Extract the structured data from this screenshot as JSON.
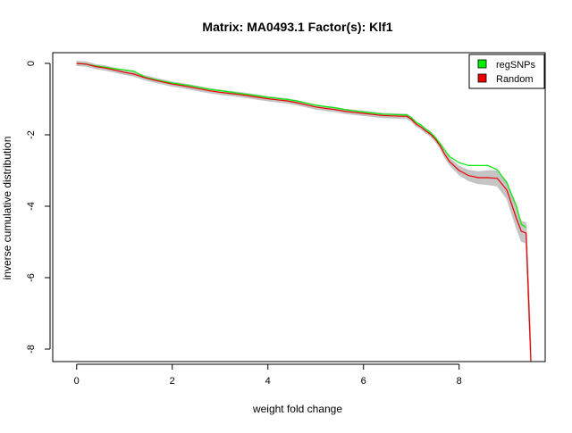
{
  "chart_data": {
    "type": "line",
    "title": "Matrix: MA0493.1 Factor(s): Klf1",
    "xlabel": "weight fold change",
    "ylabel": "inverse cumulative distribution",
    "xlim": [
      -0.5,
      9.8
    ],
    "ylim": [
      -8.35,
      0.3
    ],
    "x_ticks": [
      0,
      2,
      4,
      6,
      8
    ],
    "y_ticks": [
      0,
      -2,
      -4,
      -6,
      -8
    ],
    "x_tick_labels": [
      "0",
      "2",
      "4",
      "6",
      "8"
    ],
    "y_tick_labels": [
      "0",
      "-2",
      "-4",
      "-6",
      "-8"
    ],
    "grid": false,
    "legend": {
      "position": "top-right",
      "entries": [
        {
          "label": "regSNPs",
          "color": "#00ee00"
        },
        {
          "label": "Random",
          "color": "#ee0000"
        }
      ]
    },
    "series": [
      {
        "name": "regSNPs",
        "color": "#00ee00",
        "x": [
          0,
          0.2,
          0.4,
          0.6,
          0.8,
          1.0,
          1.2,
          1.4,
          1.6,
          1.8,
          2.0,
          2.2,
          2.4,
          2.6,
          2.8,
          3.0,
          3.2,
          3.4,
          3.6,
          3.8,
          4.0,
          4.2,
          4.4,
          4.6,
          4.8,
          5.0,
          5.2,
          5.4,
          5.6,
          5.8,
          6.0,
          6.2,
          6.4,
          6.6,
          6.8,
          6.9,
          7.0,
          7.1,
          7.2,
          7.3,
          7.4,
          7.5,
          7.6,
          7.7,
          7.8,
          8.0,
          8.2,
          8.4,
          8.6,
          8.8,
          9.0,
          9.2,
          9.3,
          9.4
        ],
        "y": [
          0,
          -0.02,
          -0.07,
          -0.11,
          -0.15,
          -0.18,
          -0.22,
          -0.37,
          -0.44,
          -0.5,
          -0.55,
          -0.59,
          -0.63,
          -0.68,
          -0.73,
          -0.76,
          -0.8,
          -0.84,
          -0.87,
          -0.91,
          -0.95,
          -0.98,
          -1.01,
          -1.05,
          -1.11,
          -1.17,
          -1.21,
          -1.24,
          -1.29,
          -1.33,
          -1.36,
          -1.39,
          -1.42,
          -1.43,
          -1.44,
          -1.44,
          -1.52,
          -1.65,
          -1.72,
          -1.84,
          -1.93,
          -2.07,
          -2.24,
          -2.43,
          -2.61,
          -2.78,
          -2.86,
          -2.86,
          -2.86,
          -2.98,
          -3.35,
          -4.0,
          -4.5,
          -4.6
        ]
      },
      {
        "name": "Random",
        "color": "#ee0000",
        "x": [
          0,
          0.2,
          0.4,
          0.6,
          0.8,
          1.0,
          1.2,
          1.4,
          1.6,
          1.8,
          2.0,
          2.2,
          2.4,
          2.6,
          2.8,
          3.0,
          3.2,
          3.4,
          3.6,
          3.8,
          4.0,
          4.2,
          4.4,
          4.6,
          4.8,
          5.0,
          5.2,
          5.4,
          5.6,
          5.8,
          6.0,
          6.2,
          6.4,
          6.6,
          6.8,
          6.9,
          7.0,
          7.1,
          7.2,
          7.3,
          7.4,
          7.5,
          7.6,
          7.7,
          7.8,
          8.0,
          8.2,
          8.4,
          8.6,
          8.8,
          9.0,
          9.2,
          9.3,
          9.4,
          9.45,
          9.5
        ],
        "y": [
          0,
          -0.02,
          -0.09,
          -0.13,
          -0.19,
          -0.25,
          -0.3,
          -0.39,
          -0.46,
          -0.52,
          -0.58,
          -0.62,
          -0.67,
          -0.72,
          -0.77,
          -0.81,
          -0.84,
          -0.87,
          -0.91,
          -0.95,
          -0.99,
          -1.02,
          -1.05,
          -1.1,
          -1.16,
          -1.22,
          -1.26,
          -1.29,
          -1.34,
          -1.37,
          -1.4,
          -1.43,
          -1.46,
          -1.47,
          -1.48,
          -1.48,
          -1.56,
          -1.7,
          -1.78,
          -1.89,
          -1.98,
          -2.12,
          -2.3,
          -2.55,
          -2.75,
          -3.0,
          -3.14,
          -3.2,
          -3.2,
          -3.22,
          -3.55,
          -4.35,
          -4.7,
          -4.75,
          -6.5,
          -8.35
        ]
      }
    ]
  }
}
